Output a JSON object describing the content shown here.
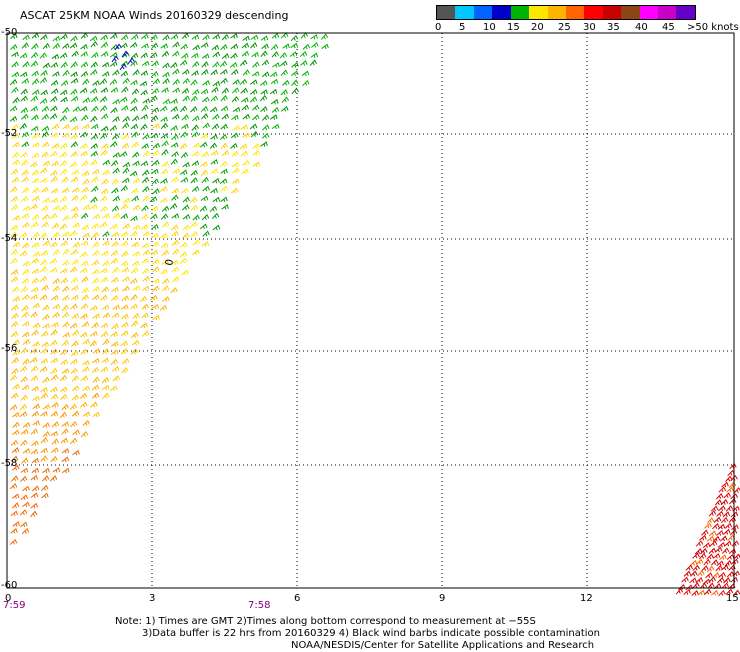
{
  "title": "ASCAT 25KM NOAA Winds 20160329 descending",
  "colorbar": {
    "colors": [
      "#555555",
      "#00c8ff",
      "#0064ff",
      "#0000c8",
      "#00b400",
      "#ffe600",
      "#ffb400",
      "#ff6400",
      "#ff0000",
      "#c80000",
      "#8b4513",
      "#ff00ff",
      "#c800c8",
      "#6400c8"
    ],
    "labels": [
      "0",
      "5",
      "10",
      "15",
      "20",
      "25",
      "30",
      "35",
      "40",
      "45",
      ">50 knots"
    ]
  },
  "axes": {
    "x_ticks": [
      "0",
      "3",
      "6",
      "9",
      "12",
      "15"
    ],
    "y_ticks": [
      "-50",
      "-52",
      "-54",
      "-56",
      "-58",
      "-60"
    ]
  },
  "times": [
    "7:59",
    "7:58"
  ],
  "notes": {
    "line1": "Note: 1) Times are GMT 2)Times along bottom correspond to measurement at −55S",
    "line2": "3)Data buffer is 22 hrs from 20160329 4) Black wind barbs indicate possible contamination",
    "line3": "NOAA/NESDIS/Center for Satellite Applications and Research"
  },
  "map_marker": "0"
}
